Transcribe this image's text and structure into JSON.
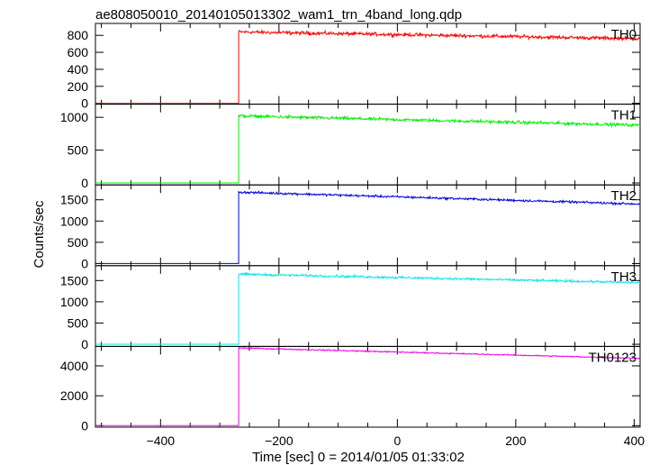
{
  "chart_data": {
    "type": "line",
    "title": "ae808050010_20140105013302_wam1_trn_4band_long.qdp",
    "xlabel": "Time [sec] 0 = 2014/01/05 01:33:02",
    "ylabel": "Counts/sec",
    "xlim": [
      -510,
      410
    ],
    "x_ticks": [
      -400,
      -200,
      0,
      200,
      400
    ],
    "grid": false,
    "legend": "none",
    "onset_time": -268,
    "series": [
      {
        "name": "TH0",
        "color": "#ff0000",
        "ylim": [
          -10,
          940
        ],
        "y_ticks": [
          0,
          200,
          400,
          600,
          800
        ],
        "pre_level": 0,
        "start_level": 840,
        "end_level": 760,
        "noise": 30,
        "x": [
          -510,
          -268,
          -266,
          -200,
          0,
          200,
          400
        ],
        "y": [
          0,
          0,
          840,
          830,
          800,
          780,
          760
        ]
      },
      {
        "name": "TH1",
        "color": "#00ee00",
        "ylim": [
          -30,
          1200
        ],
        "y_ticks": [
          0,
          500,
          1000
        ],
        "pre_level": 0,
        "start_level": 1020,
        "end_level": 880,
        "noise": 35,
        "x": [
          -510,
          -268,
          -266,
          -200,
          0,
          200,
          400
        ],
        "y": [
          0,
          0,
          1020,
          1000,
          960,
          920,
          880
        ]
      },
      {
        "name": "TH2",
        "color": "#0000dd",
        "ylim": [
          -50,
          1850
        ],
        "y_ticks": [
          0,
          500,
          1000,
          1500
        ],
        "pre_level": 0,
        "start_level": 1680,
        "end_level": 1400,
        "noise": 40,
        "x": [
          -510,
          -268,
          -266,
          -200,
          0,
          200,
          400
        ],
        "y": [
          0,
          0,
          1680,
          1650,
          1550,
          1470,
          1400
        ]
      },
      {
        "name": "TH3",
        "color": "#00e5ee",
        "ylim": [
          -50,
          1850
        ],
        "y_ticks": [
          0,
          500,
          1000,
          1500
        ],
        "pre_level": 0,
        "start_level": 1650,
        "end_level": 1450,
        "noise": 40,
        "x": [
          -510,
          -268,
          -266,
          -200,
          0,
          200,
          400
        ],
        "y": [
          0,
          0,
          1650,
          1620,
          1550,
          1490,
          1450
        ]
      },
      {
        "name": "TH0123",
        "color": "#ee00ee",
        "ylim": [
          -100,
          5300
        ],
        "y_ticks": [
          0,
          2000,
          4000
        ],
        "pre_level": 0,
        "start_level": 5200,
        "end_level": 4500,
        "noise": 60,
        "x": [
          -510,
          -268,
          -266,
          -200,
          0,
          200,
          400
        ],
        "y": [
          0,
          0,
          5200,
          5100,
          4900,
          4700,
          4500
        ]
      }
    ]
  }
}
